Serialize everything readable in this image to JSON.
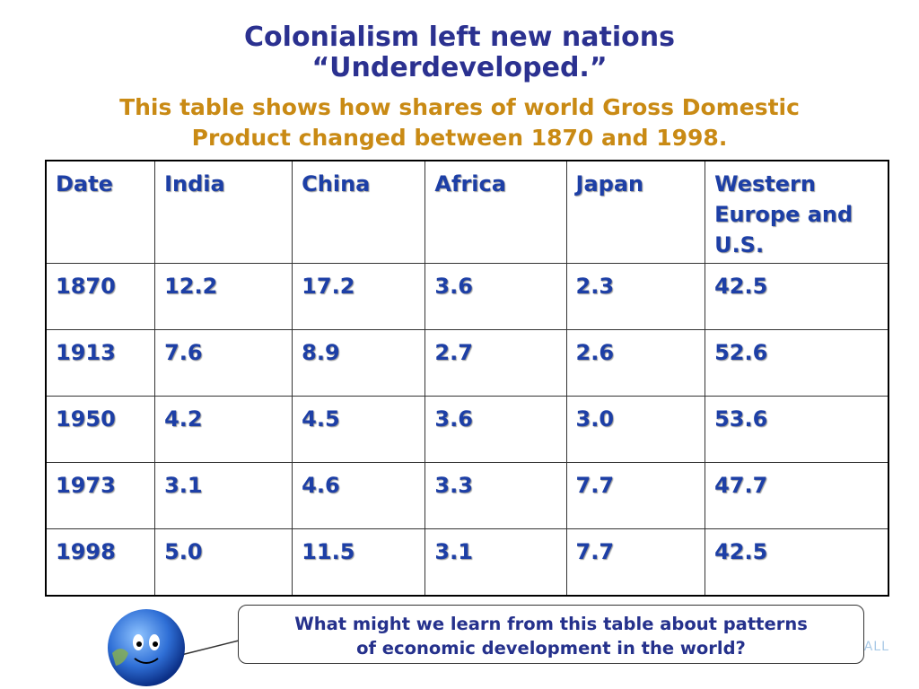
{
  "header": {
    "title_lines": [
      "Colonialism left new nations",
      "“Underdeveloped.”"
    ],
    "subtitle_lines": [
      "This table shows how shares of world Gross Domestic",
      "Product changed between 1870 and 1998."
    ]
  },
  "table": {
    "columns": [
      "Date",
      "India",
      "China",
      "Africa",
      "Japan",
      "Western Europe and U.S."
    ],
    "rows": [
      [
        "1870",
        "12.2",
        "17.2",
        "3.6",
        "2.3",
        "42.5"
      ],
      [
        "1913",
        "7.6",
        "8.9",
        "2.7",
        "2.6",
        "52.6"
      ],
      [
        "1950",
        "4.2",
        "4.5",
        "3.6",
        "3.0",
        "53.6"
      ],
      [
        "1973",
        "3.1",
        "4.6",
        "3.3",
        "7.7",
        "47.7"
      ],
      [
        "1998",
        "5.0",
        "11.5",
        "3.1",
        "7.7",
        "42.5"
      ]
    ]
  },
  "callout": {
    "lines": [
      "What might we learn from this table about patterns",
      "of economic development in the world?"
    ]
  },
  "logo_text": "ORY FOR US ALL"
}
